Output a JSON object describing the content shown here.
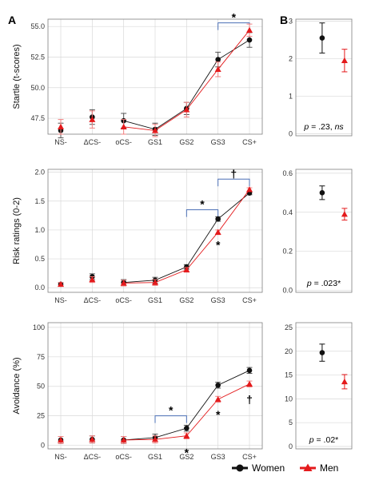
{
  "panel_labels": [
    "A",
    "B"
  ],
  "colors": {
    "women": "#111111",
    "men": "#e41a1c",
    "bracket": "#4a6fb5",
    "grid": "#d9d9d9",
    "frame": "#7f7f7f"
  },
  "legend": {
    "placement": "bottom",
    "items": [
      {
        "label": "Women",
        "color": "#111111",
        "marker": "circle"
      },
      {
        "label": "Men",
        "color": "#e41a1c",
        "marker": "triangle"
      }
    ]
  },
  "chart_data": [
    {
      "id": "startle-line",
      "type": "line",
      "panel": "A",
      "ylabel": "Startle (t-scores)",
      "categories": [
        "NS-",
        "ΔCS-",
        "oCS-",
        "GS1",
        "GS2",
        "GS3",
        "CS+"
      ],
      "ylim": [
        46.2,
        55.6
      ],
      "yticks": [
        47.5,
        50.0,
        52.5,
        55.0
      ],
      "ytick_labels": [
        "47.5",
        "50.0",
        "52.5",
        "55.0"
      ],
      "connect_from": 2,
      "series": [
        {
          "name": "Women",
          "values": [
            46.5,
            47.6,
            47.3,
            46.6,
            48.3,
            52.3,
            53.9
          ],
          "err": [
            0.6,
            0.6,
            0.6,
            0.5,
            0.5,
            0.6,
            0.6
          ]
        },
        {
          "name": "Men",
          "values": [
            46.8,
            47.4,
            46.8,
            46.5,
            48.2,
            51.5,
            54.7
          ],
          "err": [
            0.6,
            0.7,
            0.6,
            0.5,
            0.6,
            0.6,
            0.5
          ]
        }
      ],
      "brackets": [
        {
          "from": 5,
          "to": 6,
          "y": 55.3,
          "label": "*"
        }
      ],
      "stars": []
    },
    {
      "id": "startle-sex",
      "type": "scatter",
      "panel": "B",
      "ylim": [
        -0.05,
        3.05
      ],
      "yticks": [
        0,
        1,
        2,
        3
      ],
      "ytick_labels": [
        "0",
        "1",
        "2",
        "3"
      ],
      "series": [
        {
          "name": "Women",
          "value": 2.55,
          "err": 0.4
        },
        {
          "name": "Men",
          "value": 1.95,
          "err": 0.3
        }
      ],
      "annotation": {
        "prefix": "p",
        "rest": " = .23, ",
        "suffix": "ns"
      }
    },
    {
      "id": "risk-line",
      "type": "line",
      "panel": "A",
      "ylabel": "Risk ratings (0-2)",
      "categories": [
        "NS-",
        "ΔCS-",
        "oCS-",
        "GS1",
        "GS2",
        "GS3",
        "CS+"
      ],
      "ylim": [
        -0.08,
        2.05
      ],
      "yticks": [
        0.0,
        0.5,
        1.0,
        1.5,
        2.0
      ],
      "ytick_labels": [
        "0.0",
        "0.5",
        "1.0",
        "1.5",
        "2.0"
      ],
      "connect_from": 2,
      "series": [
        {
          "name": "Women",
          "values": [
            0.06,
            0.19,
            0.09,
            0.13,
            0.36,
            1.19,
            1.64
          ],
          "err": [
            0.03,
            0.05,
            0.05,
            0.05,
            0.04,
            0.04,
            0.03
          ]
        },
        {
          "name": "Men",
          "values": [
            0.06,
            0.14,
            0.08,
            0.09,
            0.31,
            0.96,
            1.7
          ],
          "err": [
            0.03,
            0.05,
            0.05,
            0.05,
            0.04,
            0.04,
            0.03
          ]
        }
      ],
      "brackets": [
        {
          "from": 4,
          "to": 5,
          "y": 1.35,
          "label": "*"
        },
        {
          "from": 5,
          "to": 6,
          "y": 1.88,
          "label": "†"
        }
      ],
      "stars": [
        {
          "at": 5,
          "y": 0.74,
          "label": "*"
        }
      ]
    },
    {
      "id": "risk-sex",
      "type": "scatter",
      "panel": "B",
      "ylim": [
        -0.01,
        0.62
      ],
      "yticks": [
        0.0,
        0.2,
        0.4,
        0.6
      ],
      "ytick_labels": [
        "0.0",
        "0.2",
        "0.4",
        "0.6"
      ],
      "series": [
        {
          "name": "Women",
          "value": 0.5,
          "err": 0.035
        },
        {
          "name": "Men",
          "value": 0.39,
          "err": 0.03
        }
      ],
      "annotation": {
        "prefix": "p",
        "rest": " = .023*",
        "suffix": ""
      }
    },
    {
      "id": "avoid-line",
      "type": "line",
      "panel": "A",
      "ylabel": "Avoidance (%)",
      "categories": [
        "NS-",
        "ΔCS-",
        "oCS-",
        "GS1",
        "GS2",
        "GS3",
        "CS+"
      ],
      "ylim": [
        -3,
        104
      ],
      "yticks": [
        0,
        25,
        50,
        75,
        100
      ],
      "ytick_labels": [
        "0",
        "25",
        "50",
        "75",
        "100"
      ],
      "connect_from": 2,
      "series": [
        {
          "name": "Women",
          "values": [
            4.5,
            5.0,
            4.5,
            6.5,
            14.5,
            51.0,
            63.5
          ],
          "err": [
            3.0,
            3.0,
            3.0,
            3.0,
            2.5,
            2.5,
            2.5
          ]
        },
        {
          "name": "Men",
          "values": [
            4.5,
            5.0,
            4.5,
            5.0,
            8.0,
            39.0,
            52.0
          ],
          "err": [
            3.0,
            3.0,
            3.0,
            3.0,
            2.5,
            2.5,
            2.5
          ]
        }
      ],
      "brackets": [
        {
          "from": 3,
          "to": 4,
          "y": 25,
          "label": "*"
        }
      ],
      "stars": [
        {
          "at": 4,
          "y": -6,
          "label": "*"
        },
        {
          "at": 5,
          "y": 26,
          "label": "*"
        },
        {
          "at": 6,
          "y": 39,
          "label": "†"
        }
      ]
    },
    {
      "id": "avoid-sex",
      "type": "scatter",
      "panel": "B",
      "ylim": [
        -0.5,
        26
      ],
      "yticks": [
        0,
        5,
        10,
        15,
        20,
        25
      ],
      "ytick_labels": [
        "0",
        "5",
        "10",
        "15",
        "20",
        "25"
      ],
      "series": [
        {
          "name": "Women",
          "value": 19.7,
          "err": 1.8
        },
        {
          "name": "Men",
          "value": 13.6,
          "err": 1.5
        }
      ],
      "annotation": {
        "prefix": "p",
        "rest": " = .02*",
        "suffix": ""
      }
    }
  ]
}
